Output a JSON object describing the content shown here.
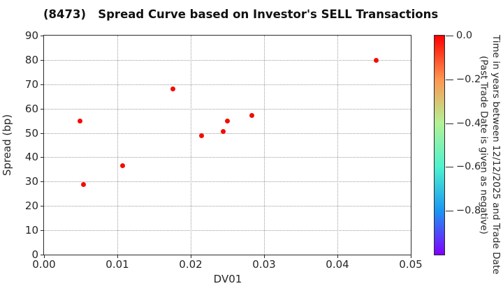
{
  "figure": {
    "title": "(8473)   Spread Curve based on Investor's SELL Transactions"
  },
  "chart_data": {
    "type": "scatter",
    "title": "(8473)   Spread Curve based on Investor's SELL Transactions",
    "xlabel": "DV01",
    "ylabel": "Spread (bp)",
    "xlim": [
      0.0,
      0.05
    ],
    "ylim": [
      0,
      90
    ],
    "x_tick_values": [
      0.0,
      0.01,
      0.02,
      0.03,
      0.04,
      0.05
    ],
    "x_tick_labels": [
      "0.00",
      "0.01",
      "0.02",
      "0.03",
      "0.04",
      "0.05"
    ],
    "y_tick_values": [
      0,
      10,
      20,
      30,
      40,
      50,
      60,
      70,
      80,
      90
    ],
    "y_tick_labels": [
      "0",
      "10",
      "20",
      "30",
      "40",
      "50",
      "60",
      "70",
      "80",
      "90"
    ],
    "grid": true,
    "legend": "none",
    "marker_color": "#f20d00",
    "points": [
      {
        "dv01": 0.0049,
        "spread_bp": 55.0,
        "color_value": 0.0
      },
      {
        "dv01": 0.0054,
        "spread_bp": 28.9,
        "color_value": 0.0
      },
      {
        "dv01": 0.0107,
        "spread_bp": 36.7,
        "color_value": 0.0
      },
      {
        "dv01": 0.0176,
        "spread_bp": 68.2,
        "color_value": 0.0
      },
      {
        "dv01": 0.0215,
        "spread_bp": 49.0,
        "color_value": 0.0
      },
      {
        "dv01": 0.0244,
        "spread_bp": 50.7,
        "color_value": 0.0
      },
      {
        "dv01": 0.025,
        "spread_bp": 55.0,
        "color_value": 0.0
      },
      {
        "dv01": 0.0283,
        "spread_bp": 57.3,
        "color_value": 0.0
      },
      {
        "dv01": 0.0453,
        "spread_bp": 79.7,
        "color_value": 0.0
      }
    ],
    "colorbar": {
      "label_line1": "Time in years between 12/12/2025 and Trade Date",
      "label_line2": "(Past Trade Date is given as negative)",
      "vmax": 0.0,
      "vmin": -1.0,
      "tick_values": [
        0.0,
        -0.2,
        -0.4,
        -0.6,
        -0.8
      ],
      "tick_labels": [
        "0.0",
        "−0.2",
        "−0.4",
        "−0.6",
        "−0.8"
      ],
      "colormap": "rainbow",
      "gradient_stops": [
        {
          "value": 0.0,
          "color": "#ff0000"
        },
        {
          "value": -0.2,
          "color": "#ff9650"
        },
        {
          "value": -0.4,
          "color": "#b3f296"
        },
        {
          "value": -0.6,
          "color": "#4df2ce"
        },
        {
          "value": -0.8,
          "color": "#1a96f2"
        },
        {
          "value": -1.0,
          "color": "#8000ff"
        }
      ]
    }
  }
}
